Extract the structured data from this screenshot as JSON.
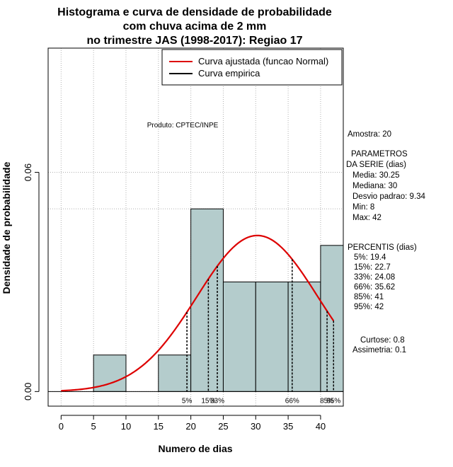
{
  "chart_data": {
    "type": "histogram",
    "title_lines": [
      "Histograma e curva de densidade de probabilidade",
      "com chuva acima de 2 mm",
      "no trimestre JAS (1998-2017): Regiao 17"
    ],
    "xlabel": "Numero de dias",
    "ylabel": "Densidade de probabilidade",
    "xlim": [
      -2,
      43.5
    ],
    "ylim": [
      -0.004,
      0.094
    ],
    "x_ticks": [
      0,
      5,
      10,
      15,
      20,
      25,
      30,
      35,
      40
    ],
    "x_tick_labels": [
      "0",
      "5",
      "10",
      "15",
      "20",
      "25",
      "30",
      "35",
      "40"
    ],
    "y_ticks": [
      0.0,
      0.06
    ],
    "y_tick_labels": [
      "0.00",
      "0.06"
    ],
    "bins": [
      {
        "x0": 5,
        "x1": 10,
        "density": 0.01
      },
      {
        "x0": 10,
        "x1": 15,
        "density": 0.0
      },
      {
        "x0": 15,
        "x1": 20,
        "density": 0.01
      },
      {
        "x0": 20,
        "x1": 25,
        "density": 0.05
      },
      {
        "x0": 25,
        "x1": 30,
        "density": 0.03
      },
      {
        "x0": 30,
        "x1": 35,
        "density": 0.03
      },
      {
        "x0": 35,
        "x1": 40,
        "density": 0.03
      },
      {
        "x0": 40,
        "x1": 45,
        "density": 0.04
      }
    ],
    "normal_curve": {
      "name": "Curva ajustada (funcao Normal)",
      "mean": 30.25,
      "sd": 9.34,
      "x_start": 0,
      "x_end": 42,
      "color": "#dd0000"
    },
    "empirical_curve": {
      "name": "Curva empirica",
      "color": "#000000"
    },
    "bar_fill": "#b4cccc",
    "grid": true,
    "grid_y_extra": 0.05,
    "legend_position": "top-right",
    "percentile_lines": [
      {
        "label": "5%",
        "value": 19.4
      },
      {
        "label": "15%",
        "value": 22.7
      },
      {
        "label": "33%",
        "value": 24.08
      },
      {
        "label": "66%",
        "value": 35.62
      },
      {
        "label": "85%",
        "value": 41
      },
      {
        "label": "95%",
        "value": 42
      }
    ],
    "annotation_product": "Produto: CPTEC/INPE",
    "side_panel": {
      "sample": "Amostra: 20",
      "params_title_1": "PARAMETROS",
      "params_title_2": "DA SERIE (dias)",
      "params": [
        "Media: 30.25",
        "Mediana: 30",
        "Desvio padrao: 9.34",
        "Min: 8",
        "Max: 42"
      ],
      "percentis_title": "PERCENTIS (dias)",
      "percentis": [
        "5%: 19.4",
        "15%: 22.7",
        "33%: 24.08",
        "66%: 35.62",
        "85%: 41",
        "95%: 42"
      ],
      "kurtosis": "Curtose: 0.8",
      "skewness": "Assimetria: 0.1"
    }
  }
}
